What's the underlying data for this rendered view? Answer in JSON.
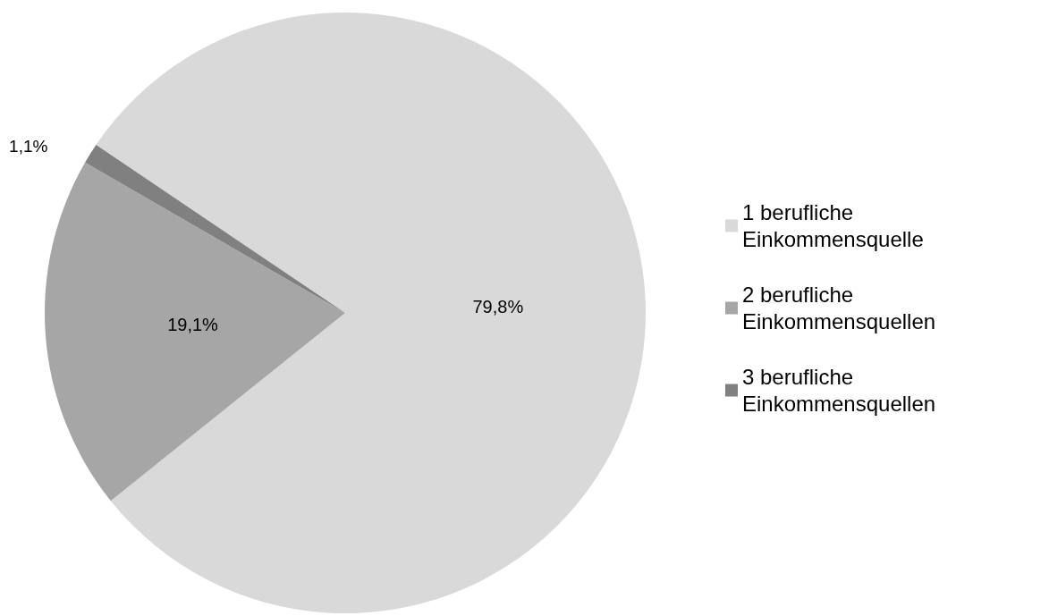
{
  "chart_data": {
    "type": "pie",
    "categories": [
      "1 berufliche Einkommensquelle",
      "2 berufliche Einkommensquellen",
      "3 berufliche Einkommensquellen"
    ],
    "values": [
      79.8,
      19.1,
      1.1
    ],
    "colors": [
      "#d9d9d9",
      "#a6a6a6",
      "#808080"
    ],
    "value_labels": [
      "79,8%",
      "19,1%",
      "1,1%"
    ],
    "legend": "right"
  }
}
